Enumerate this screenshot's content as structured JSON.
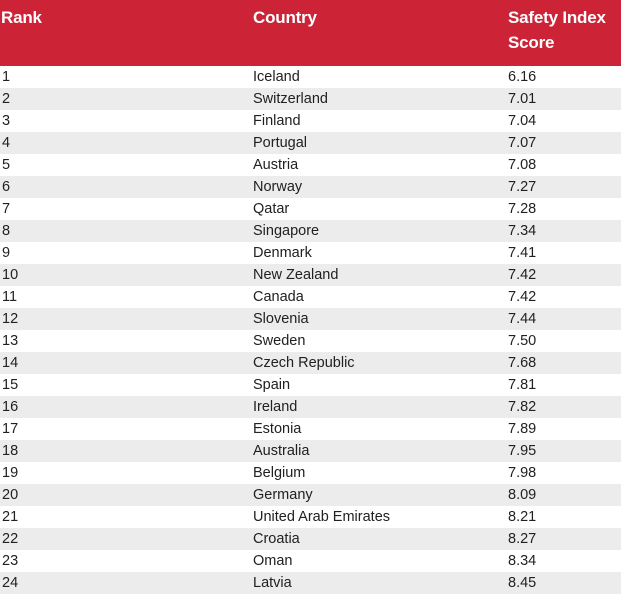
{
  "theme": {
    "header_bg": "#cc2337",
    "header_text": "#ffffff",
    "stripe_bg": "#ececec",
    "row_bg": "#ffffff",
    "body_text": "#212121",
    "hairline": "#c5c5c5"
  },
  "chart_data": {
    "type": "table",
    "title": "",
    "columns": [
      "Rank",
      "Country",
      "Safety Index Score"
    ],
    "rows": [
      [
        1,
        "Iceland",
        "6.16"
      ],
      [
        2,
        "Switzerland",
        "7.01"
      ],
      [
        3,
        "Finland",
        "7.04"
      ],
      [
        4,
        "Portugal",
        "7.07"
      ],
      [
        5,
        "Austria",
        "7.08"
      ],
      [
        6,
        "Norway",
        "7.27"
      ],
      [
        7,
        "Qatar",
        "7.28"
      ],
      [
        8,
        "Singapore",
        "7.34"
      ],
      [
        9,
        "Denmark",
        "7.41"
      ],
      [
        10,
        "New Zealand",
        "7.42"
      ],
      [
        11,
        "Canada",
        "7.42"
      ],
      [
        12,
        "Slovenia",
        "7.44"
      ],
      [
        13,
        "Sweden",
        "7.50"
      ],
      [
        14,
        "Czech Republic",
        "7.68"
      ],
      [
        15,
        "Spain",
        "7.81"
      ],
      [
        16,
        "Ireland",
        "7.82"
      ],
      [
        17,
        "Estonia",
        "7.89"
      ],
      [
        18,
        "Australia",
        "7.95"
      ],
      [
        19,
        "Belgium",
        "7.98"
      ],
      [
        20,
        "Germany",
        "8.09"
      ],
      [
        21,
        "United Arab Emirates",
        "8.21"
      ],
      [
        22,
        "Croatia",
        "8.27"
      ],
      [
        23,
        "Oman",
        "8.34"
      ],
      [
        24,
        "Latvia",
        "8.45"
      ]
    ],
    "layout": {
      "striped_rows": true,
      "first_row_background": "white",
      "header_style": "solid red background, white bold text"
    }
  }
}
